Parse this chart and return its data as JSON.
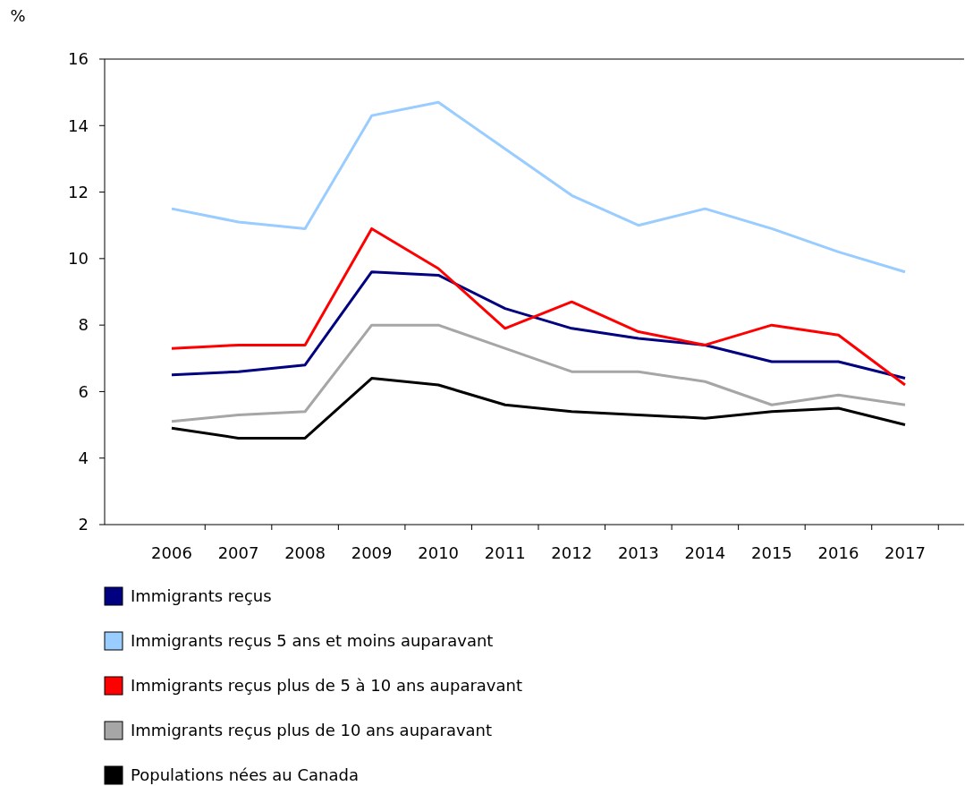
{
  "chart_data": {
    "type": "line",
    "ylabel": "%",
    "categories": [
      "2006",
      "2007",
      "2008",
      "2009",
      "2010",
      "2011",
      "2012",
      "2013",
      "2014",
      "2015",
      "2016",
      "2017"
    ],
    "ylim": [
      2,
      16
    ],
    "yticks": [
      2,
      4,
      6,
      8,
      10,
      12,
      14,
      16
    ],
    "grid": false,
    "legend": "bottom",
    "marker": "none",
    "line_style": "solid",
    "series": [
      {
        "name": "Immigrants reçus",
        "color": "#000080",
        "values": [
          6.5,
          6.6,
          6.8,
          9.6,
          9.5,
          8.5,
          7.9,
          7.6,
          7.4,
          6.9,
          6.9,
          6.4
        ]
      },
      {
        "name": "Immigrants reçus 5 ans et moins auparavant",
        "color": "#99ccff",
        "values": [
          11.5,
          11.1,
          10.9,
          14.3,
          14.7,
          13.3,
          11.9,
          11.0,
          11.5,
          10.9,
          10.2,
          9.6
        ]
      },
      {
        "name": "Immigrants reçus plus de 5 à 10 ans auparavant",
        "color": "#ff0000",
        "values": [
          7.3,
          7.4,
          7.4,
          10.9,
          9.7,
          7.9,
          8.7,
          7.8,
          7.4,
          8.0,
          7.7,
          6.2
        ]
      },
      {
        "name": "Immigrants reçus plus de 10 ans auparavant",
        "color": "#a6a6a6",
        "values": [
          5.1,
          5.3,
          5.4,
          8.0,
          8.0,
          7.3,
          6.6,
          6.6,
          6.3,
          5.6,
          5.9,
          5.6
        ]
      },
      {
        "name": "Populations nées au Canada",
        "color": "#000000",
        "values": [
          4.9,
          4.6,
          4.6,
          6.4,
          6.2,
          5.6,
          5.4,
          5.3,
          5.2,
          5.4,
          5.5,
          5.0
        ]
      }
    ]
  }
}
